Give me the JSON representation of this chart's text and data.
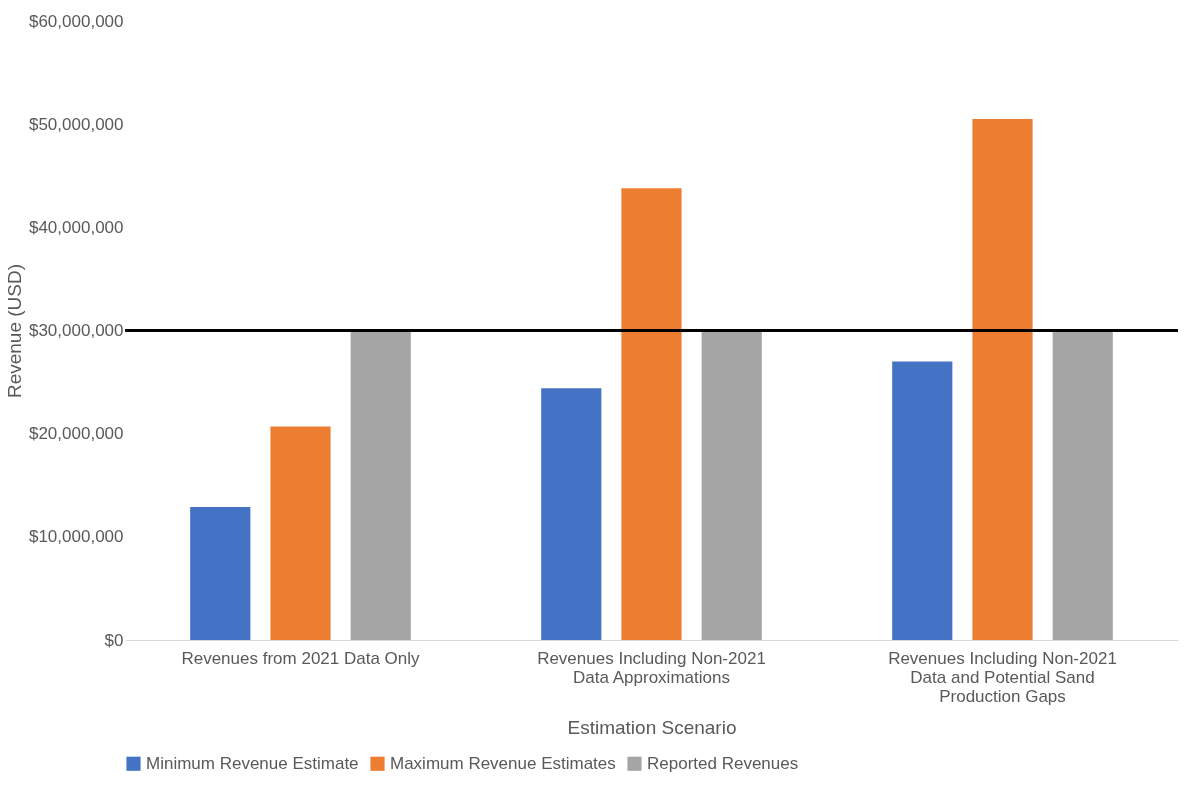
{
  "chart_data": {
    "type": "bar",
    "xlabel": "Estimation Scenario",
    "ylabel": "Revenue (USD)",
    "categories": [
      "Revenues from 2021 Data Only",
      "Revenues Including Non-2021 Data Approximations",
      "Revenues Including Non-2021 Data and Potential Sand Production Gaps"
    ],
    "series": [
      {
        "name": "Minimum Revenue Estimate",
        "color": "#4472c4",
        "values": [
          12900000,
          24400000,
          27000000
        ]
      },
      {
        "name": "Maximum Revenue Estimates",
        "color": "#ed7d31",
        "values": [
          20700000,
          43800000,
          50500000
        ]
      },
      {
        "name": "Reported Revenues",
        "color": "#a5a5a5",
        "values": [
          30000000,
          30000000,
          30000000
        ]
      }
    ],
    "ylim": [
      0,
      60000000
    ],
    "yticks": [
      {
        "value": 0,
        "label": "$0"
      },
      {
        "value": 10000000,
        "label": "$10,000,000"
      },
      {
        "value": 20000000,
        "label": "$20,000,000"
      },
      {
        "value": 30000000,
        "label": "$30,000,000"
      },
      {
        "value": 40000000,
        "label": "$40,000,000"
      },
      {
        "value": 50000000,
        "label": "$50,000,000"
      },
      {
        "value": 60000000,
        "label": "$60,000,000"
      }
    ],
    "ref_lines": [
      {
        "axis": "y",
        "value": 30000000,
        "color": "#000000"
      }
    ],
    "grid": false,
    "legend": "bottom"
  }
}
